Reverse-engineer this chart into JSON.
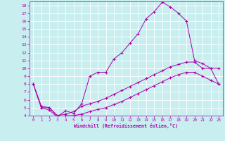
{
  "title": "",
  "xlabel": "Windchill (Refroidissement éolien,°C)",
  "bg_color": "#c8eef0",
  "grid_color": "#ffffff",
  "line_color": "#aa00aa",
  "xlim": [
    -0.5,
    23.5
  ],
  "ylim": [
    4,
    18.5
  ],
  "xticks": [
    0,
    1,
    2,
    3,
    4,
    5,
    6,
    7,
    8,
    9,
    10,
    11,
    12,
    13,
    14,
    15,
    16,
    17,
    18,
    19,
    20,
    21,
    22,
    23
  ],
  "yticks": [
    4,
    5,
    6,
    7,
    8,
    9,
    10,
    11,
    12,
    13,
    14,
    15,
    16,
    17,
    18
  ],
  "curve1_x": [
    0,
    1,
    2,
    3,
    4,
    5,
    6,
    7,
    8,
    9,
    10,
    11,
    12,
    13,
    14,
    15,
    16,
    17,
    18,
    19,
    20,
    21,
    22,
    23
  ],
  "curve1_y": [
    8.0,
    5.0,
    5.0,
    3.9,
    4.6,
    4.3,
    5.5,
    9.0,
    9.5,
    9.5,
    11.2,
    12.0,
    13.2,
    14.4,
    16.3,
    17.2,
    18.4,
    17.8,
    17.0,
    16.0,
    11.0,
    10.6,
    10.0,
    10.0
  ],
  "curve2_x": [
    0,
    1,
    2,
    3,
    4,
    5,
    6,
    7,
    8,
    9,
    10,
    11,
    12,
    13,
    14,
    15,
    16,
    17,
    18,
    19,
    20,
    21,
    22,
    23
  ],
  "curve2_y": [
    8.0,
    5.2,
    5.0,
    4.0,
    4.2,
    4.5,
    5.2,
    5.5,
    5.8,
    6.2,
    6.7,
    7.2,
    7.7,
    8.2,
    8.7,
    9.2,
    9.7,
    10.2,
    10.5,
    10.8,
    10.8,
    10.0,
    10.0,
    8.0
  ],
  "curve3_x": [
    0,
    1,
    2,
    3,
    4,
    5,
    6,
    7,
    8,
    9,
    10,
    11,
    12,
    13,
    14,
    15,
    16,
    17,
    18,
    19,
    20,
    21,
    22,
    23
  ],
  "curve3_y": [
    8.0,
    5.0,
    4.7,
    3.8,
    4.0,
    4.0,
    4.2,
    4.5,
    4.8,
    5.0,
    5.4,
    5.8,
    6.3,
    6.8,
    7.3,
    7.8,
    8.3,
    8.8,
    9.2,
    9.5,
    9.5,
    9.0,
    8.5,
    8.0
  ]
}
